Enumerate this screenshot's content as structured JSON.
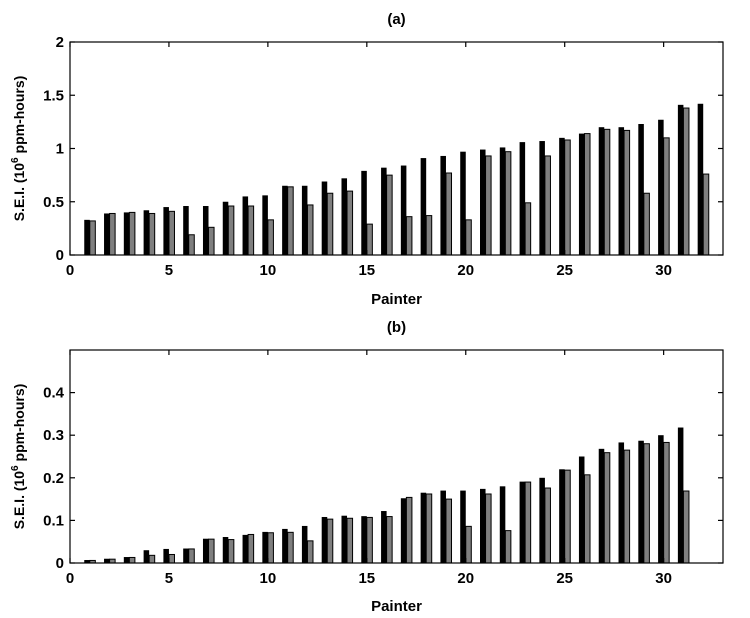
{
  "chart_data": [
    {
      "type": "bar",
      "title": "(a)",
      "xlabel": "Painter",
      "ylabel": {
        "prefix": "S.E.I. (10",
        "superscript": "6",
        "suffix": " ppm-hours)"
      },
      "xlim": [
        0,
        33
      ],
      "ylim": [
        0,
        2
      ],
      "xticks": [
        0,
        5,
        10,
        15,
        20,
        25,
        30
      ],
      "yticks": [
        "0",
        "0.5",
        "1",
        "1.5",
        "2"
      ],
      "categories": [
        1,
        2,
        3,
        4,
        5,
        6,
        7,
        8,
        9,
        10,
        11,
        12,
        13,
        14,
        15,
        16,
        17,
        18,
        19,
        20,
        21,
        22,
        23,
        24,
        25,
        26,
        27,
        28,
        29,
        30,
        31,
        32
      ],
      "series": [
        {
          "color": "#000000",
          "values": [
            0.33,
            0.39,
            0.4,
            0.42,
            0.45,
            0.46,
            0.46,
            0.5,
            0.55,
            0.56,
            0.65,
            0.65,
            0.69,
            0.72,
            0.79,
            0.82,
            0.84,
            0.91,
            0.93,
            0.97,
            0.99,
            1.01,
            1.06,
            1.07,
            1.1,
            1.14,
            1.2,
            1.2,
            1.23,
            1.27,
            1.41,
            1.42
          ]
        },
        {
          "color": "#7f7f7f",
          "values": [
            0.32,
            0.39,
            0.4,
            0.39,
            0.41,
            0.19,
            0.26,
            0.46,
            0.46,
            0.33,
            0.64,
            0.47,
            0.58,
            0.6,
            0.29,
            0.75,
            0.36,
            0.37,
            0.77,
            0.33,
            0.93,
            0.97,
            0.49,
            0.93,
            1.08,
            1.14,
            1.18,
            1.17,
            0.58,
            1.1,
            1.38,
            0.76
          ]
        }
      ]
    },
    {
      "type": "bar",
      "title": "(b)",
      "xlabel": "Painter",
      "ylabel": {
        "prefix": "S.E.I. (10",
        "superscript": "6",
        "suffix": " ppm-hours)"
      },
      "xlim": [
        0,
        33
      ],
      "ylim": [
        0,
        0.5
      ],
      "xticks": [
        0,
        5,
        10,
        15,
        20,
        25,
        30
      ],
      "yticks": [
        "0",
        "0.1",
        "0.2",
        "0.3",
        "0.4"
      ],
      "categories": [
        1,
        2,
        3,
        4,
        5,
        6,
        7,
        8,
        9,
        10,
        11,
        12,
        13,
        14,
        15,
        16,
        17,
        18,
        19,
        20,
        21,
        22,
        23,
        24,
        25,
        26,
        27,
        28,
        29,
        30,
        31
      ],
      "series": [
        {
          "color": "#000000",
          "values": [
            0.007,
            0.01,
            0.014,
            0.03,
            0.033,
            0.034,
            0.057,
            0.061,
            0.066,
            0.073,
            0.08,
            0.087,
            0.108,
            0.111,
            0.11,
            0.122,
            0.152,
            0.165,
            0.17,
            0.17,
            0.174,
            0.18,
            0.191,
            0.2,
            0.22,
            0.25,
            0.268,
            0.283,
            0.287,
            0.3,
            0.318
          ]
        },
        {
          "color": "#7f7f7f",
          "values": [
            0.006,
            0.009,
            0.013,
            0.018,
            0.02,
            0.033,
            0.056,
            0.055,
            0.067,
            0.071,
            0.072,
            0.052,
            0.103,
            0.105,
            0.107,
            0.109,
            0.154,
            0.162,
            0.15,
            0.086,
            0.162,
            0.076,
            0.19,
            0.176,
            0.218,
            0.207,
            0.259,
            0.265,
            0.28,
            0.283,
            0.169
          ]
        }
      ]
    }
  ]
}
